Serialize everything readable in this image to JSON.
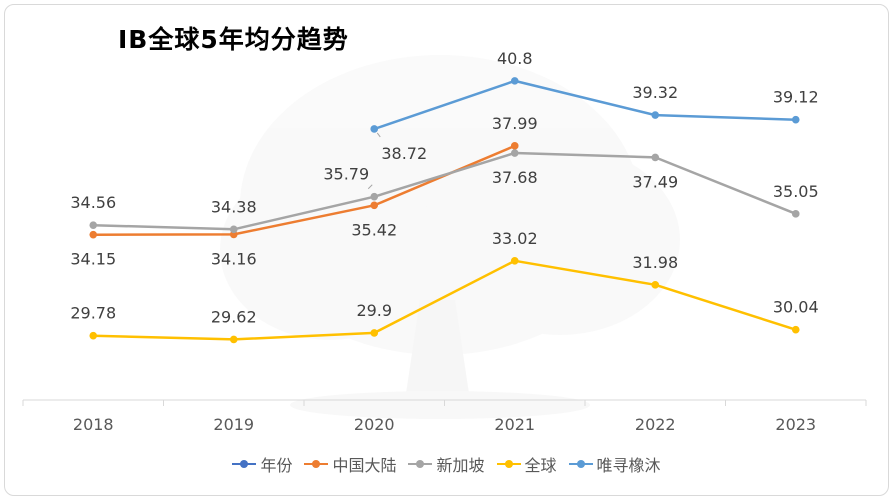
{
  "chart_data": {
    "type": "line",
    "title": "IB全球5年均分趋势",
    "categories": [
      "2018",
      "2019",
      "2020",
      "2021",
      "2022",
      "2023"
    ],
    "ylim": [
      27,
      43
    ],
    "grid": false,
    "legend_position": "bottom",
    "series": [
      {
        "name": "年份",
        "color": "#4472C4",
        "values": [
          null,
          null,
          null,
          null,
          null,
          null
        ]
      },
      {
        "name": "中国大陆",
        "color": "#ED7D31",
        "values": [
          34.15,
          34.16,
          35.42,
          37.99,
          null,
          null
        ]
      },
      {
        "name": "新加坡",
        "color": "#A5A5A5",
        "values": [
          34.56,
          34.38,
          35.79,
          37.68,
          37.49,
          35.05
        ]
      },
      {
        "name": "全球",
        "color": "#FFC000",
        "values": [
          29.78,
          29.62,
          29.9,
          33.02,
          31.98,
          30.04
        ]
      },
      {
        "name": "唯寻橡沐",
        "color": "#5B9BD5",
        "values": [
          null,
          null,
          38.72,
          40.8,
          39.32,
          39.12
        ]
      }
    ],
    "data_labels": [
      {
        "series": 1,
        "index": 0,
        "text": "34.15",
        "pos": "below"
      },
      {
        "series": 1,
        "index": 1,
        "text": "34.16",
        "pos": "below"
      },
      {
        "series": 1,
        "index": 2,
        "text": "35.42",
        "pos": "below"
      },
      {
        "series": 1,
        "index": 3,
        "text": "37.99",
        "pos": "above"
      },
      {
        "series": 2,
        "index": 0,
        "text": "34.56",
        "pos": "above"
      },
      {
        "series": 2,
        "index": 1,
        "text": "34.38",
        "pos": "above"
      },
      {
        "series": 2,
        "index": 2,
        "text": "35.79",
        "pos": "above-left"
      },
      {
        "series": 2,
        "index": 3,
        "text": "37.68",
        "pos": "below"
      },
      {
        "series": 2,
        "index": 4,
        "text": "37.49",
        "pos": "below"
      },
      {
        "series": 2,
        "index": 5,
        "text": "35.05",
        "pos": "above"
      },
      {
        "series": 3,
        "index": 0,
        "text": "29.78",
        "pos": "above"
      },
      {
        "series": 3,
        "index": 1,
        "text": "29.62",
        "pos": "above"
      },
      {
        "series": 3,
        "index": 2,
        "text": "29.9",
        "pos": "above"
      },
      {
        "series": 3,
        "index": 3,
        "text": "33.02",
        "pos": "above"
      },
      {
        "series": 3,
        "index": 4,
        "text": "31.98",
        "pos": "above"
      },
      {
        "series": 3,
        "index": 5,
        "text": "30.04",
        "pos": "above"
      },
      {
        "series": 4,
        "index": 2,
        "text": "38.72",
        "pos": "below-right"
      },
      {
        "series": 4,
        "index": 3,
        "text": "40.8",
        "pos": "above"
      },
      {
        "series": 4,
        "index": 4,
        "text": "39.32",
        "pos": "above"
      },
      {
        "series": 4,
        "index": 5,
        "text": "39.12",
        "pos": "above"
      }
    ]
  }
}
